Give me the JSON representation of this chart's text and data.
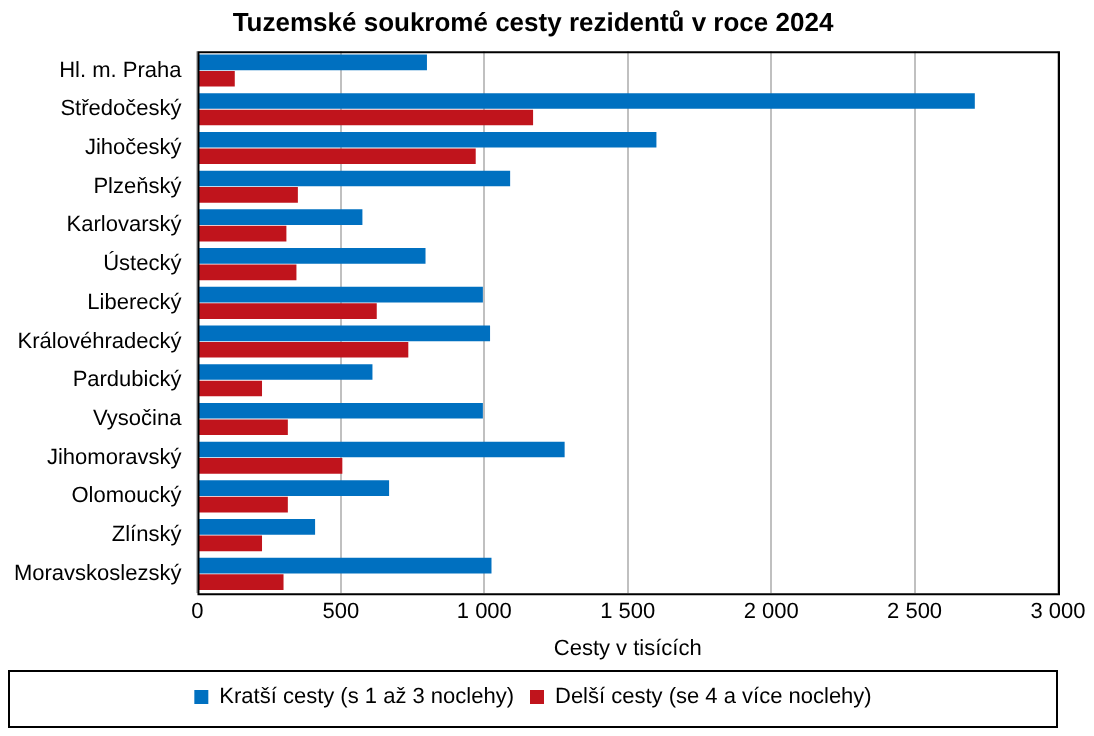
{
  "chart_data": {
    "type": "bar",
    "orientation": "horizontal",
    "title": "Tuzemské soukromé cesty rezidentů v roce 2024",
    "xlabel": "Cesty v tisících",
    "categories": [
      "Hl. m. Praha",
      "Středočeský",
      "Jihočeský",
      "Plzeňský",
      "Karlovarský",
      "Ústecký",
      "Liberecký",
      "Královéhradecký",
      "Pardubický",
      "Vysočina",
      "Jihomoravský",
      "Olomoucký",
      "Zlínský",
      "Moravskoslezský"
    ],
    "series": [
      {
        "name": "Kratší cesty (s 1 až 3 noclehy)",
        "color": "#0070c0",
        "values": [
          800,
          2710,
          1600,
          1090,
          575,
          795,
          995,
          1020,
          610,
          995,
          1280,
          668,
          410,
          1025
        ]
      },
      {
        "name": "Delší cesty (se 4 a více noclehy)",
        "color": "#c0141c",
        "values": [
          130,
          1170,
          970,
          350,
          310,
          345,
          625,
          735,
          225,
          315,
          505,
          315,
          225,
          300
        ]
      }
    ],
    "xlim": [
      0,
      3000
    ],
    "xticks": [
      {
        "value": 0,
        "label": "0"
      },
      {
        "value": 500,
        "label": "500"
      },
      {
        "value": 1000,
        "label": "1 000"
      },
      {
        "value": 1500,
        "label": "1 500"
      },
      {
        "value": 2000,
        "label": "2 000"
      },
      {
        "value": 2500,
        "label": "2 500"
      },
      {
        "value": 3000,
        "label": "3 000"
      }
    ],
    "grid": "x",
    "legend": "bottom"
  }
}
